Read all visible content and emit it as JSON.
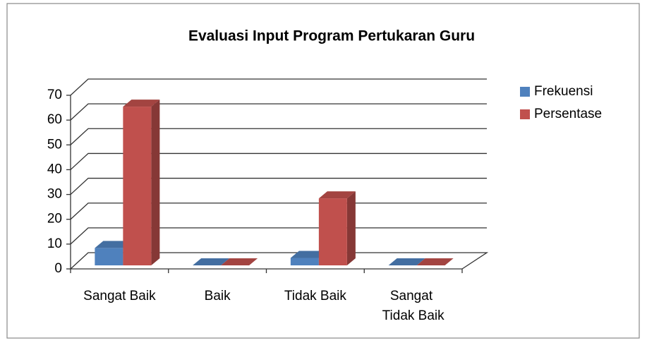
{
  "chart_data": {
    "type": "bar3d",
    "title": "Evaluasi Input Program Pertukaran Guru",
    "categories": [
      "Sangat Baik",
      "Baik",
      "Tidak Baik",
      "Sangat Tidak Baik"
    ],
    "series": [
      {
        "name": "Frekuensi",
        "color": "#4f81bd",
        "values": [
          7,
          0,
          3,
          0
        ]
      },
      {
        "name": "Persentase",
        "color": "#c0504d",
        "values": [
          64,
          0,
          27,
          0
        ]
      }
    ],
    "ylim": [
      0,
      70
    ],
    "yticks": [
      0,
      10,
      20,
      30,
      40,
      50,
      60,
      70
    ],
    "grid": true,
    "legend": "right"
  }
}
